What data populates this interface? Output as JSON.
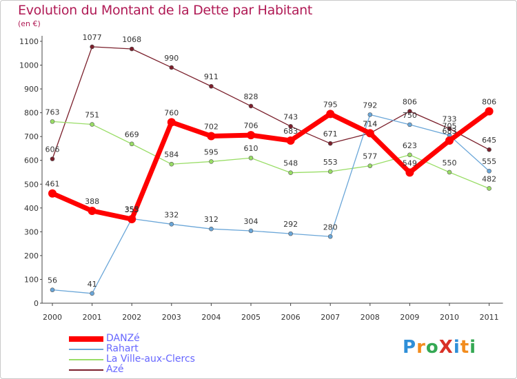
{
  "title": "Evolution du Montant de la Dette par Habitant",
  "subtitle": "(en €)",
  "logo": {
    "text": "ProXiti",
    "colors": [
      "#2f8fd8",
      "#f28c1e",
      "#34a853",
      "#d93025",
      "#2f8fd8",
      "#f28c1e",
      "#34a853"
    ]
  },
  "chart_data": {
    "type": "line",
    "title": "Evolution du Montant de la Dette par Habitant",
    "ylabel": "(en €)",
    "xlabel": "",
    "x": [
      "2000",
      "2001",
      "2002",
      "2003",
      "2004",
      "2005",
      "2006",
      "2007",
      "2008",
      "2009",
      "2010",
      "2011"
    ],
    "ylim": [
      0,
      1100
    ],
    "yticks": [
      0,
      100,
      200,
      300,
      400,
      500,
      600,
      700,
      800,
      900,
      1000,
      1100
    ],
    "grid": false,
    "legend": "bottom-left",
    "series": [
      {
        "name": "Azé",
        "color": "#7a1f2b",
        "values": [
          606,
          1077,
          1068,
          990,
          911,
          828,
          743,
          671,
          714,
          806,
          733,
          645
        ]
      },
      {
        "name": "La Ville-aux-Clercs",
        "color": "#99dd66",
        "values": [
          763,
          751,
          669,
          584,
          595,
          610,
          548,
          553,
          577,
          623,
          550,
          482
        ]
      },
      {
        "name": "Rahart",
        "color": "#6aa6d8",
        "values": [
          56,
          41,
          355,
          332,
          312,
          304,
          292,
          280,
          792,
          750,
          705,
          555
        ]
      },
      {
        "name": "DANZé",
        "color": "#ff0000",
        "values": [
          461,
          388,
          353,
          760,
          702,
          706,
          683,
          795,
          714,
          549,
          683,
          806
        ]
      }
    ],
    "legend_order": [
      "DANZé",
      "Rahart",
      "La Ville-aux-Clercs",
      "Azé"
    ]
  }
}
